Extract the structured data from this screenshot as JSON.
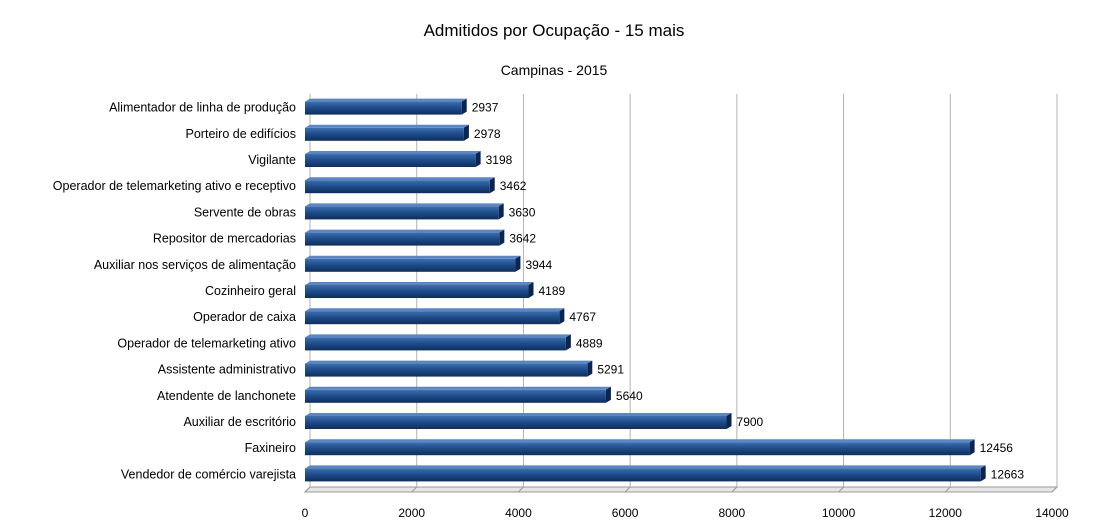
{
  "chart_data": {
    "type": "bar",
    "orientation": "horizontal",
    "title": "Admitidos por Ocupação - 15 mais",
    "subtitle": "Campinas - 2015",
    "categories": [
      "Alimentador de linha de produção",
      "Porteiro de edifícios",
      "Vigilante",
      "Operador de telemarketing ativo e receptivo",
      "Servente de obras",
      "Repositor de mercadorias",
      "Auxiliar nos serviços de alimentação",
      "Cozinheiro geral",
      "Operador de caixa",
      "Operador de telemarketing ativo",
      "Assistente administrativo",
      "Atendente de lanchonete",
      "Auxiliar de escritório",
      "Faxineiro",
      "Vendedor de comércio varejista"
    ],
    "values": [
      2937,
      2978,
      3198,
      3462,
      3630,
      3642,
      3944,
      4189,
      4767,
      4889,
      5291,
      5640,
      7900,
      12456,
      12663
    ],
    "xlim": [
      0,
      14000
    ],
    "xticks": [
      0,
      2000,
      4000,
      6000,
      8000,
      10000,
      12000,
      14000
    ],
    "grid": true,
    "bar_color": "#1f4e8c",
    "legend": "none"
  }
}
